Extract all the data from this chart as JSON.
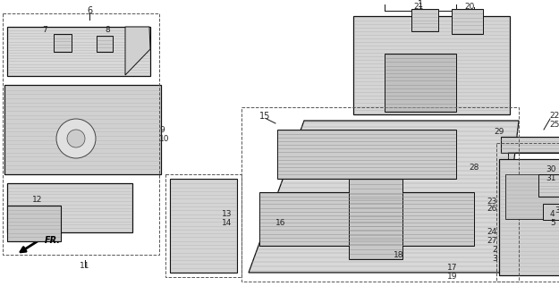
{
  "bg_color": "#ffffff",
  "fig_width": 6.25,
  "fig_height": 3.2,
  "dpi": 100,
  "image_b64": ""
}
